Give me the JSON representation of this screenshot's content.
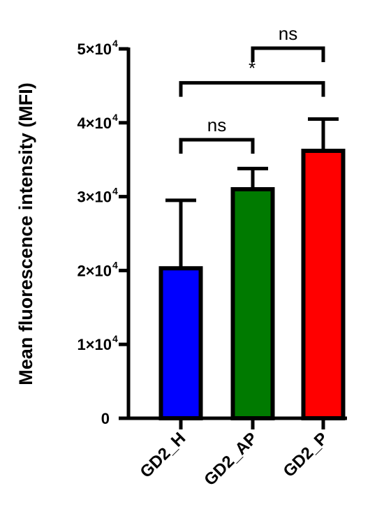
{
  "chart_data": {
    "type": "bar",
    "title": "",
    "xlabel": "",
    "ylabel": "Mean fluorescence intensity (MFI)",
    "ylim": [
      0,
      50000
    ],
    "yticks": [
      {
        "value": 0,
        "base": "0",
        "exp": ""
      },
      {
        "value": 10000,
        "base": "1×10",
        "exp": "4"
      },
      {
        "value": 20000,
        "base": "2×10",
        "exp": "4"
      },
      {
        "value": 30000,
        "base": "3×10",
        "exp": "4"
      },
      {
        "value": 40000,
        "base": "4×10",
        "exp": "4"
      },
      {
        "value": 50000,
        "base": "5×10",
        "exp": "4"
      }
    ],
    "categories": [
      "GD2_H",
      "GD2_AP",
      "GD2_P"
    ],
    "values": [
      20300,
      31000,
      36200
    ],
    "errors": [
      9200,
      2800,
      4300
    ],
    "colors": [
      "#0000ff",
      "#007a00",
      "#ff0000"
    ],
    "comparisons": [
      {
        "from": 0,
        "to": 1,
        "label": "ns",
        "y": 37700
      },
      {
        "from": 0,
        "to": 2,
        "label": "*",
        "y": 45400
      },
      {
        "from": 1,
        "to": 2,
        "label": "ns",
        "y": 50100
      }
    ]
  }
}
